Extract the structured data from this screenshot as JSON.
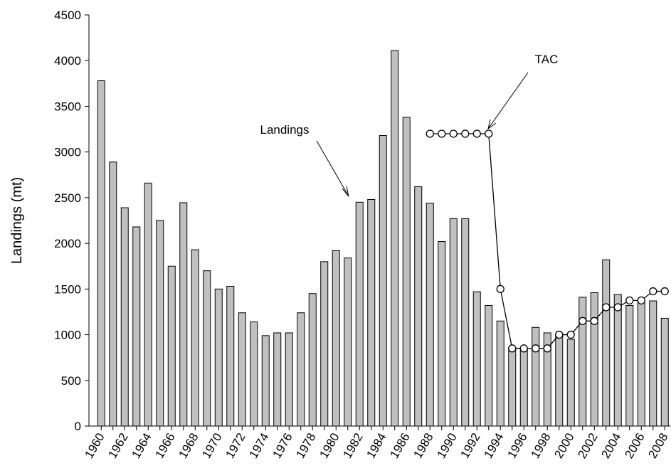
{
  "chart_data": {
    "type": "bar_line",
    "y_label": "Landings (mt)",
    "categories": [
      "1960",
      null,
      "1962",
      null,
      "1964",
      null,
      "1966",
      null,
      "1968",
      null,
      "1970",
      null,
      "1972",
      null,
      "1974",
      null,
      "1976",
      null,
      "1978",
      null,
      "1980",
      null,
      "1982",
      null,
      "1984",
      null,
      "1986",
      null,
      "1988",
      null,
      "1990",
      null,
      "1992",
      null,
      "1994",
      null,
      "1996",
      null,
      "1998",
      null,
      "2000",
      null,
      "2002",
      null,
      "2004",
      null,
      "2006",
      null,
      "2008"
    ],
    "series": [
      {
        "name": "Landings",
        "kind": "bar",
        "color": "#c0c0c0",
        "values": [
          3780,
          2890,
          2390,
          2180,
          2660,
          2250,
          1750,
          2445,
          1930,
          1700,
          1500,
          1530,
          1240,
          1140,
          990,
          1020,
          1020,
          1240,
          1450,
          1800,
          1920,
          1840,
          2450,
          2480,
          3180,
          4110,
          3380,
          2620,
          2440,
          2020,
          2270,
          2270,
          1470,
          1320,
          1150,
          860,
          850,
          1080,
          1020,
          1000,
          950,
          1410,
          1460,
          1820,
          1440,
          1320,
          1380,
          1370,
          1180
        ]
      },
      {
        "name": "TAC",
        "kind": "line",
        "color": "#000000",
        "values": [
          null,
          null,
          null,
          null,
          null,
          null,
          null,
          null,
          null,
          null,
          null,
          null,
          null,
          null,
          null,
          null,
          null,
          null,
          null,
          null,
          null,
          null,
          null,
          null,
          null,
          null,
          null,
          null,
          3200,
          3200,
          3200,
          3200,
          3200,
          3200,
          1500,
          850,
          850,
          850,
          850,
          1000,
          1000,
          1150,
          1150,
          1300,
          1300,
          1375,
          1375,
          1475,
          1475
        ]
      }
    ],
    "ylim": [
      0,
      4500
    ],
    "yticks": [
      0,
      500,
      1000,
      1500,
      2000,
      2500,
      3000,
      3500,
      4000,
      4500
    ],
    "grid": false
  }
}
